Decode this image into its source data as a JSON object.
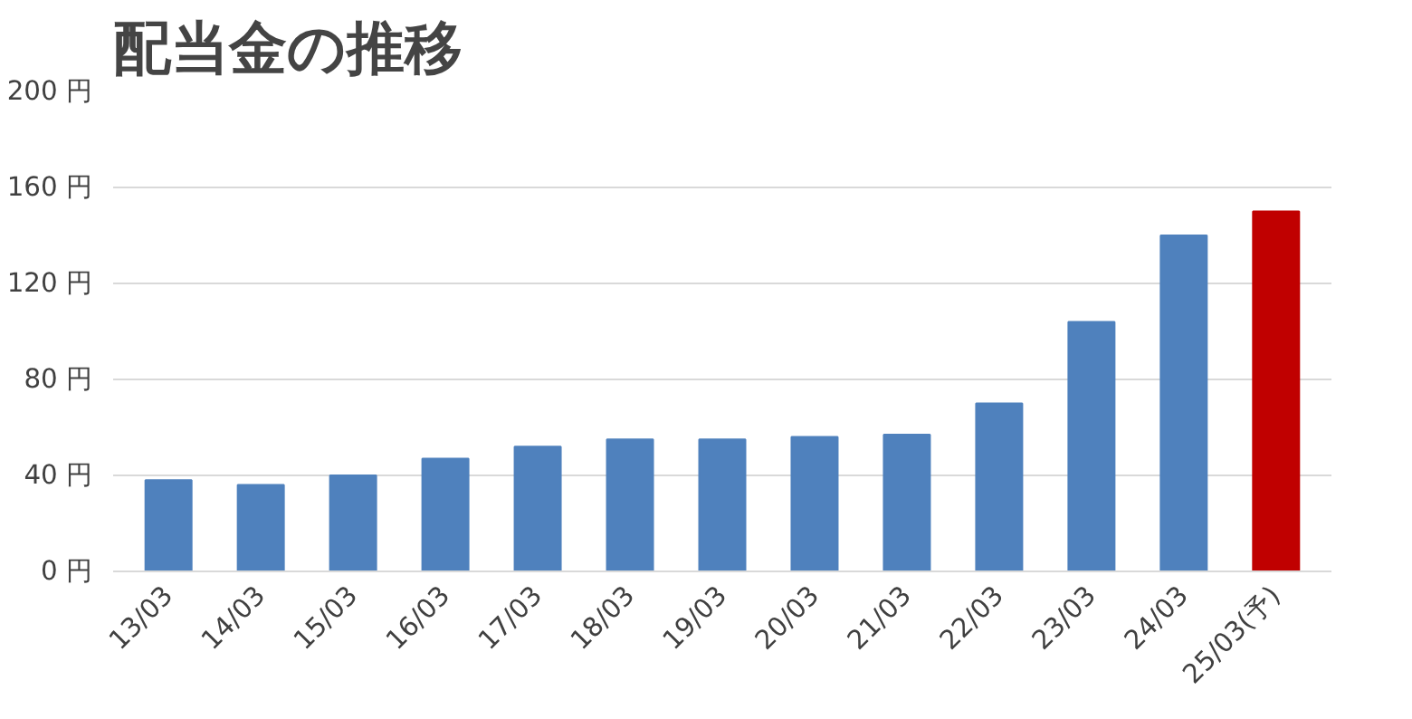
{
  "chart_data": {
    "type": "bar",
    "title": "配当金の推移",
    "categories": [
      "13/03",
      "14/03",
      "15/03",
      "16/03",
      "17/03",
      "18/03",
      "19/03",
      "20/03",
      "21/03",
      "22/03",
      "23/03",
      "24/03",
      "25/03(予)"
    ],
    "values": [
      38,
      36,
      40,
      47,
      52,
      55,
      55,
      56,
      57,
      70,
      104,
      140,
      150
    ],
    "colors": [
      "#4f81bd",
      "#4f81bd",
      "#4f81bd",
      "#4f81bd",
      "#4f81bd",
      "#4f81bd",
      "#4f81bd",
      "#4f81bd",
      "#4f81bd",
      "#4f81bd",
      "#4f81bd",
      "#4f81bd",
      "#c00000"
    ],
    "ylim": [
      0,
      200
    ],
    "yticks": [
      {
        "value": 0,
        "label": "0 円"
      },
      {
        "value": 40,
        "label": "40 円"
      },
      {
        "value": 80,
        "label": "80 円"
      },
      {
        "value": 120,
        "label": "120 円"
      },
      {
        "value": 160,
        "label": "160 円"
      },
      {
        "value": 200,
        "label": "200 円"
      }
    ],
    "grid": "y"
  }
}
